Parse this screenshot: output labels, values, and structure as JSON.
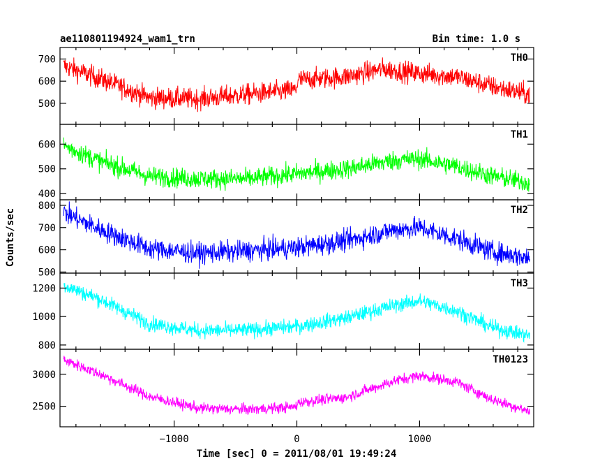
{
  "chart_data": {
    "type": "line",
    "title_left": "ae110801194924_wam1_trn",
    "title_right": "Bin time: 1.0 s",
    "xlabel": "Time [sec] 0 = 2011/08/01 19:49:24",
    "ylabel": "Counts/sec",
    "xlim": [
      -1930,
      1930
    ],
    "x_ticks": [
      -1000,
      0,
      1000
    ],
    "x_tick_labels": [
      "−1000",
      "0",
      "1000"
    ],
    "panels": [
      {
        "name": "TH0",
        "color": "#ff0000",
        "ylim": [
          405,
          752
        ],
        "y_ticks": [
          500,
          600,
          700
        ],
        "x": [
          -1930,
          -1600,
          -1200,
          -800,
          -400,
          -10,
          10,
          400,
          700,
          1000,
          1300,
          1600,
          1930
        ],
        "y": [
          675,
          610,
          525,
          520,
          540,
          560,
          605,
          620,
          655,
          635,
          620,
          575,
          535
        ],
        "noise": 45
      },
      {
        "name": "TH1",
        "color": "#00ff00",
        "ylim": [
          375,
          680
        ],
        "y_ticks": [
          400,
          500,
          600
        ],
        "x": [
          -1930,
          -1600,
          -1200,
          -800,
          -400,
          0,
          400,
          800,
          1000,
          1300,
          1600,
          1930
        ],
        "y": [
          600,
          530,
          470,
          460,
          460,
          480,
          500,
          535,
          540,
          510,
          470,
          440
        ],
        "noise": 38
      },
      {
        "name": "TH2",
        "color": "#0000ff",
        "ylim": [
          495,
          825
        ],
        "y_ticks": [
          500,
          600,
          700,
          800
        ],
        "x": [
          -1930,
          -1600,
          -1200,
          -800,
          -400,
          0,
          400,
          800,
          1000,
          1300,
          1600,
          1930
        ],
        "y": [
          775,
          690,
          605,
          585,
          595,
          610,
          640,
          690,
          700,
          650,
          590,
          560
        ],
        "noise": 45
      },
      {
        "name": "TH3",
        "color": "#00ffff",
        "ylim": [
          770,
          1305
        ],
        "y_ticks": [
          800,
          1000,
          1200
        ],
        "x": [
          -1930,
          -1600,
          -1200,
          -800,
          -400,
          0,
          400,
          800,
          1000,
          1300,
          1600,
          1930
        ],
        "y": [
          1230,
          1120,
          950,
          900,
          905,
          930,
          990,
          1080,
          1110,
          1040,
          920,
          860
        ],
        "noise": 50
      },
      {
        "name": "TH0123",
        "color": "#ff00ff",
        "ylim": [
          2180,
          3390
        ],
        "y_ticks": [
          2500,
          3000
        ],
        "x": [
          -1930,
          -1600,
          -1200,
          -800,
          -400,
          -10,
          10,
          400,
          800,
          1000,
          1300,
          1600,
          1930
        ],
        "y": [
          3250,
          3000,
          2650,
          2470,
          2450,
          2490,
          2560,
          2640,
          2900,
          2980,
          2880,
          2600,
          2400
        ],
        "noise": 80
      }
    ]
  }
}
